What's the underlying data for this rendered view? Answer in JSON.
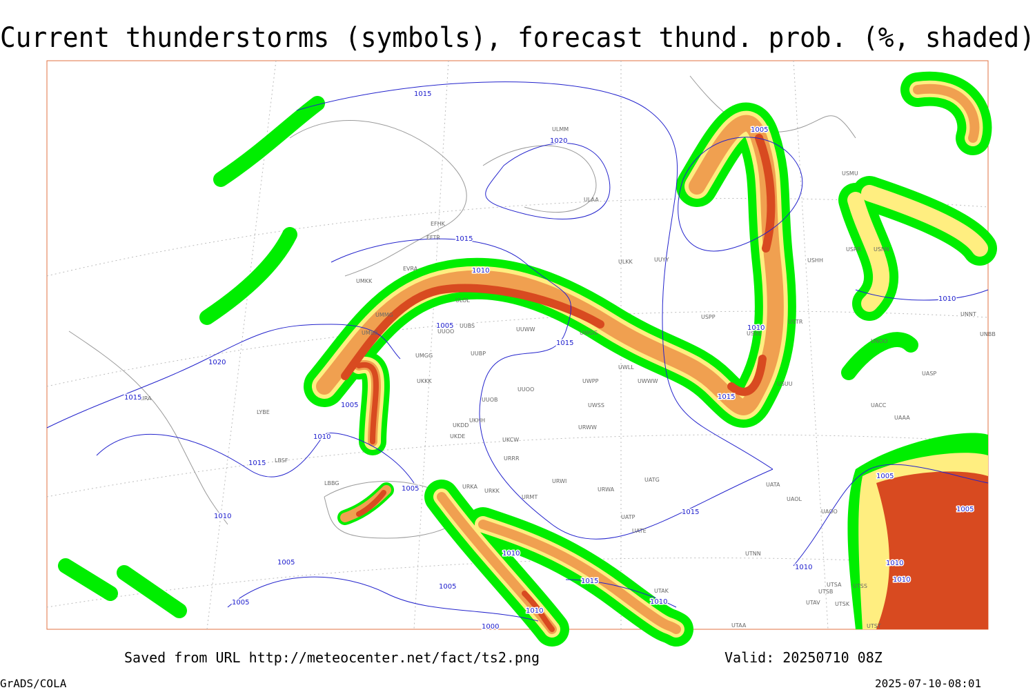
{
  "header": {
    "title": "Current thunderstorms (symbols), forecast thund. prob. (%, shaded)"
  },
  "footer": {
    "source": "Saved from URL http://meteocenter.net/fact/ts2.png",
    "valid": "Valid: 20250710 08Z",
    "software": "GrADS/COLA",
    "timestamp": "2025-07-10-08:01"
  },
  "isobar_labels": [
    1015,
    1020,
    1005,
    1015,
    1010,
    1005,
    1015,
    1020,
    1015,
    1005,
    1010,
    1015,
    1005,
    1010,
    1005,
    1005,
    1005,
    1010,
    1015,
    1010,
    1000,
    1010,
    1015,
    1010,
    1010,
    1015,
    1010,
    1005,
    1005,
    1010,
    1010
  ],
  "stations": [
    "ULMM",
    "ULAA",
    "EFHK",
    "EFTR",
    "EVRA",
    "UMKK",
    "ULOL",
    "UMMG",
    "UMBB",
    "UUBS",
    "UUOO",
    "UUWW",
    "UWGG",
    "ULKK",
    "UUYY",
    "USHH",
    "USPP",
    "UUBP",
    "UMGG",
    "UKKK",
    "UUOB",
    "UUOO",
    "UWPP",
    "UWWW",
    "UWLL",
    "UWSS",
    "URWW",
    "UKHH",
    "UKDD",
    "UKDE",
    "UKCW",
    "URRR",
    "URWI",
    "UATG",
    "URWA",
    "URKK",
    "URKA",
    "URMT",
    "UATE",
    "UATP",
    "UATA",
    "UAOL",
    "UAOO",
    "UTNN",
    "UTSA",
    "UTSB",
    "UTSS",
    "UTAV",
    "UTSK",
    "UTAK",
    "UTAA",
    "UTST",
    "LBBG",
    "LBSF",
    "LYBE",
    "LIRA",
    "USSS",
    "USNN",
    "USMU",
    "USRR",
    "USTR",
    "UACC",
    "UASP",
    "UNNT",
    "UNBB",
    "UNOO",
    "USUU",
    "UAAA"
  ]
}
